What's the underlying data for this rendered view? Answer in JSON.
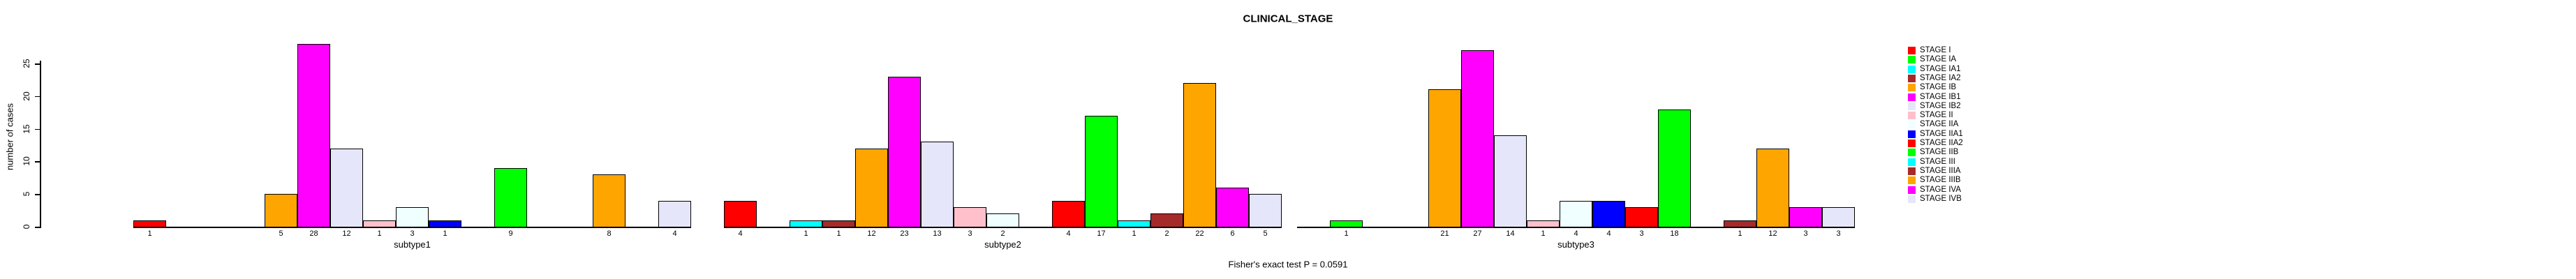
{
  "chart_data": {
    "type": "bar",
    "title": "CLINICAL_STAGE",
    "ylabel": "number of cases",
    "footer": "Fisher's exact test P = 0.0591",
    "yticks": [
      0,
      5,
      10,
      15,
      20,
      25
    ],
    "ylim": [
      0,
      29
    ],
    "grid": false,
    "legend_position": "right",
    "categories": [
      "subtype1",
      "subtype2",
      "subtype3"
    ],
    "stages": [
      {
        "label": "STAGE I",
        "color": "#FF0000"
      },
      {
        "label": "STAGE IA",
        "color": "#00FF00"
      },
      {
        "label": "STAGE IA1",
        "color": "#00FFFF"
      },
      {
        "label": "STAGE IA2",
        "color": "#A52A2A"
      },
      {
        "label": "STAGE IB",
        "color": "#FFA500"
      },
      {
        "label": "STAGE IB1",
        "color": "#FF00FF"
      },
      {
        "label": "STAGE IB2",
        "color": "#E6E6FA"
      },
      {
        "label": "STAGE II",
        "color": "#FFC0CB"
      },
      {
        "label": "STAGE IIA",
        "color": "#F0FFFF"
      },
      {
        "label": "STAGE IIA1",
        "color": "#0000FF"
      },
      {
        "label": "STAGE IIA2",
        "color": "#FF0000"
      },
      {
        "label": "STAGE IIB",
        "color": "#00FF00"
      },
      {
        "label": "STAGE III",
        "color": "#00FFFF"
      },
      {
        "label": "STAGE IIIA",
        "color": "#A52A2A"
      },
      {
        "label": "STAGE IIIB",
        "color": "#FFA500"
      },
      {
        "label": "STAGE IVA",
        "color": "#FF00FF"
      },
      {
        "label": "STAGE IVB",
        "color": "#E6E6FA"
      }
    ],
    "series": [
      {
        "name": "subtype1",
        "values": [
          1,
          0,
          0,
          0,
          5,
          28,
          12,
          1,
          3,
          1,
          0,
          9,
          0,
          0,
          8,
          0,
          4
        ]
      },
      {
        "name": "subtype2",
        "values": [
          4,
          0,
          1,
          1,
          12,
          23,
          13,
          3,
          2,
          0,
          4,
          17,
          1,
          2,
          22,
          6,
          5
        ]
      },
      {
        "name": "subtype3",
        "values": [
          0,
          1,
          0,
          0,
          21,
          27,
          14,
          1,
          4,
          4,
          3,
          18,
          0,
          1,
          12,
          3,
          3
        ]
      }
    ]
  }
}
